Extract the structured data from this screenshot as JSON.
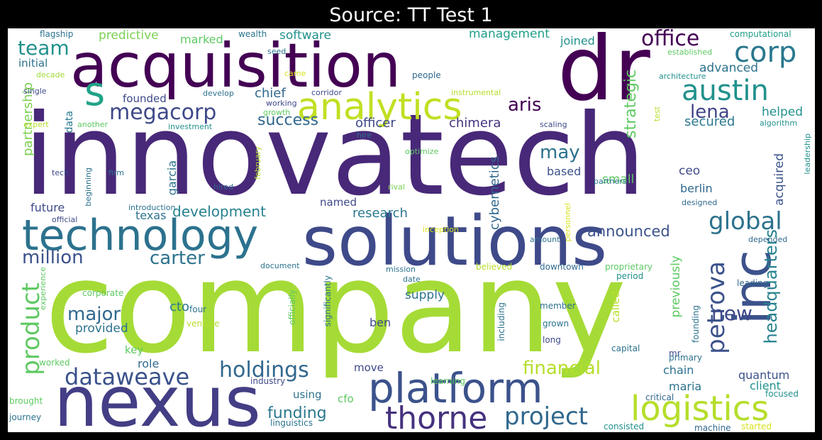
{
  "title": "Source: TT Test 1",
  "words": [
    {
      "text": "company",
      "color": "#a5db36"
    },
    {
      "text": "innovatech",
      "color": "#482878"
    },
    {
      "text": "solutions",
      "color": "#3e4a89"
    },
    {
      "text": "nexus",
      "color": "#433e85"
    },
    {
      "text": "acquisition",
      "color": "#440154"
    },
    {
      "text": "dr",
      "color": "#440154"
    },
    {
      "text": "technology",
      "color": "#2c728e"
    },
    {
      "text": "platform",
      "color": "#3b528b"
    },
    {
      "text": "inc",
      "color": "#3b528b"
    },
    {
      "text": "analytics",
      "color": "#c2df23"
    },
    {
      "text": "logistics",
      "color": "#b5de2b"
    },
    {
      "text": "thorne",
      "color": "#46327e"
    },
    {
      "text": "austin",
      "color": "#21918c"
    },
    {
      "text": "corp",
      "color": "#2a788e"
    },
    {
      "text": "dataweave",
      "color": "#3b528b"
    },
    {
      "text": "project",
      "color": "#31688e"
    },
    {
      "text": "megacorp",
      "color": "#3e4989"
    },
    {
      "text": "global",
      "color": "#2c728e"
    },
    {
      "text": "office",
      "color": "#440154"
    },
    {
      "text": "team",
      "color": "#21918c"
    },
    {
      "text": "s",
      "color": "#20a386"
    },
    {
      "text": "holdings",
      "color": "#31688e"
    },
    {
      "text": "petrova",
      "color": "#3b528b"
    },
    {
      "text": "product",
      "color": "#5ec962"
    },
    {
      "text": "headquarters",
      "color": "#26828e"
    },
    {
      "text": "financial",
      "color": "#b5de2b"
    },
    {
      "text": "funding",
      "color": "#2a788e"
    },
    {
      "text": "major",
      "color": "#31688e"
    },
    {
      "text": "million",
      "color": "#3b528b"
    },
    {
      "text": "carter",
      "color": "#2c728e"
    },
    {
      "text": "development",
      "color": "#26828e"
    },
    {
      "text": "may",
      "color": "#2c728e"
    },
    {
      "text": "aris",
      "color": "#440154"
    },
    {
      "text": "lena",
      "color": "#414487"
    },
    {
      "text": "new",
      "color": "#3e4989"
    },
    {
      "text": "announced",
      "color": "#3b528b"
    },
    {
      "text": "success",
      "color": "#31688e"
    },
    {
      "text": "strategic",
      "color": "#5ec962"
    },
    {
      "text": "acquired",
      "color": "#3b528b"
    },
    {
      "text": "partnership",
      "color": "#7ad151"
    },
    {
      "text": "cybernetics",
      "color": "#31688e"
    },
    {
      "text": "research",
      "color": "#2a788e"
    },
    {
      "text": "chimera",
      "color": "#46327e"
    },
    {
      "text": "officer",
      "color": "#3e4989"
    },
    {
      "text": "chief",
      "color": "#31688e"
    },
    {
      "text": "secured",
      "color": "#2a788e"
    },
    {
      "text": "advanced",
      "color": "#2c728e"
    },
    {
      "text": "helped",
      "color": "#21918c"
    },
    {
      "text": "management",
      "color": "#1f9e89"
    },
    {
      "text": "software",
      "color": "#21918c"
    },
    {
      "text": "predictive",
      "color": "#7ad151"
    },
    {
      "text": "marked",
      "color": "#5ec962"
    },
    {
      "text": "joined",
      "color": "#21918c"
    },
    {
      "text": "initial",
      "color": "#2c728e"
    },
    {
      "text": "founded",
      "color": "#3e4989"
    },
    {
      "text": "data",
      "color": "#2a788e"
    },
    {
      "text": "based",
      "color": "#3b528b"
    },
    {
      "text": "berlin",
      "color": "#31688e"
    },
    {
      "text": "small",
      "color": "#5ec962"
    },
    {
      "text": "ceo",
      "color": "#3e4a89"
    },
    {
      "text": "garcia",
      "color": "#2c728e"
    },
    {
      "text": "texas",
      "color": "#2c728e"
    },
    {
      "text": "future",
      "color": "#3e4989"
    },
    {
      "text": "named",
      "color": "#3e4989"
    },
    {
      "text": "cto",
      "color": "#2a788e"
    },
    {
      "text": "provided",
      "color": "#2c728e"
    },
    {
      "text": "supply",
      "color": "#2c728e"
    },
    {
      "text": "previously",
      "color": "#5ec962"
    },
    {
      "text": "client",
      "color": "#21918c"
    },
    {
      "text": "quantum",
      "color": "#3b528b"
    },
    {
      "text": "chain",
      "color": "#2c728e"
    },
    {
      "text": "maria",
      "color": "#2c728e"
    },
    {
      "text": "cfo",
      "color": "#5ec962"
    },
    {
      "text": "using",
      "color": "#2c728e"
    },
    {
      "text": "ben",
      "color": "#3e4989"
    },
    {
      "text": "role",
      "color": "#31688e"
    },
    {
      "text": "key",
      "color": "#5ec962"
    },
    {
      "text": "called",
      "color": "#b5de2b"
    },
    {
      "text": "move",
      "color": "#3e4989"
    },
    {
      "text": "wealth",
      "color": "#2c728e"
    },
    {
      "text": "computational",
      "color": "#1f9e89"
    },
    {
      "text": "flagship",
      "color": "#2c728e"
    },
    {
      "text": "seed",
      "color": "#2c728e"
    },
    {
      "text": "people",
      "color": "#31688e"
    },
    {
      "text": "established",
      "color": "#5ec962"
    },
    {
      "text": "architecture",
      "color": "#21918c"
    },
    {
      "text": "decade",
      "color": "#a0da39"
    },
    {
      "text": "came",
      "color": "#d8e219"
    },
    {
      "text": "single",
      "color": "#3e4989"
    },
    {
      "text": "develop",
      "color": "#2c728e"
    },
    {
      "text": "corridor",
      "color": "#3e4989"
    },
    {
      "text": "instrumental",
      "color": "#b5de2b"
    },
    {
      "text": "working",
      "color": "#3e4989"
    },
    {
      "text": "growth",
      "color": "#5ec962"
    },
    {
      "text": "expert",
      "color": "#b5de2b"
    },
    {
      "text": "another",
      "color": "#5ec962"
    },
    {
      "text": "investment",
      "color": "#21918c"
    },
    {
      "text": "scaling",
      "color": "#3e4989"
    },
    {
      "text": "test",
      "color": "#b5de2b"
    },
    {
      "text": "algorithm",
      "color": "#21918c"
    },
    {
      "text": "hire",
      "color": "#2c728e"
    },
    {
      "text": "optimize",
      "color": "#5ec962"
    },
    {
      "text": "tech",
      "color": "#3e4989"
    },
    {
      "text": "firm",
      "color": "#2c728e"
    },
    {
      "text": "beginning",
      "color": "#2c728e"
    },
    {
      "text": "hired",
      "color": "#31688e"
    },
    {
      "text": "february",
      "color": "#b5de2b"
    },
    {
      "text": "rival",
      "color": "#7ad151"
    },
    {
      "text": "partners",
      "color": "#2c728e"
    },
    {
      "text": "designed",
      "color": "#31688e"
    },
    {
      "text": "leadership",
      "color": "#21918c"
    },
    {
      "text": "official",
      "color": "#3e4989"
    },
    {
      "text": "introduction",
      "color": "#2c728e"
    },
    {
      "text": "inception",
      "color": "#d8e219"
    },
    {
      "text": "personnel",
      "color": "#d8e219"
    },
    {
      "text": "amount",
      "color": "#2c728e"
    },
    {
      "text": "depended",
      "color": "#31688e"
    },
    {
      "text": "experience",
      "color": "#5ec962"
    },
    {
      "text": "document",
      "color": "#2c728e"
    },
    {
      "text": "mission",
      "color": "#2c728e"
    },
    {
      "text": "date",
      "color": "#2c728e"
    },
    {
      "text": "believed",
      "color": "#b5de2b"
    },
    {
      "text": "downtown",
      "color": "#31688e"
    },
    {
      "text": "proprietary",
      "color": "#5ec962"
    },
    {
      "text": "period",
      "color": "#21918c"
    },
    {
      "text": "leading",
      "color": "#31688e"
    },
    {
      "text": "corporate",
      "color": "#5ec962"
    },
    {
      "text": "significantly",
      "color": "#2c728e"
    },
    {
      "text": "officially",
      "color": "#5ec962"
    },
    {
      "text": "venture",
      "color": "#b5de2b"
    },
    {
      "text": "four",
      "color": "#2c728e"
    },
    {
      "text": "including",
      "color": "#2c728e"
    },
    {
      "text": "member",
      "color": "#2c728e"
    },
    {
      "text": "grown",
      "color": "#2c728e"
    },
    {
      "text": "long",
      "color": "#3e4989"
    },
    {
      "text": "founding",
      "color": "#2c728e"
    },
    {
      "text": "mr",
      "color": "#3e4989"
    },
    {
      "text": "capital",
      "color": "#2c728e"
    },
    {
      "text": "primary",
      "color": "#2c728e"
    },
    {
      "text": "worked",
      "color": "#5ec962"
    },
    {
      "text": "industry",
      "color": "#3e4989"
    },
    {
      "text": "learning",
      "color": "#5ec962"
    },
    {
      "text": "critical",
      "color": "#31688e"
    },
    {
      "text": "focused",
      "color": "#21918c"
    },
    {
      "text": "brought",
      "color": "#5ec962"
    },
    {
      "text": "journey",
      "color": "#2c728e"
    },
    {
      "text": "linguistics",
      "color": "#2c728e"
    },
    {
      "text": "consisted",
      "color": "#21918c"
    },
    {
      "text": "machine",
      "color": "#31688e"
    },
    {
      "text": "started",
      "color": "#d8e219"
    }
  ]
}
